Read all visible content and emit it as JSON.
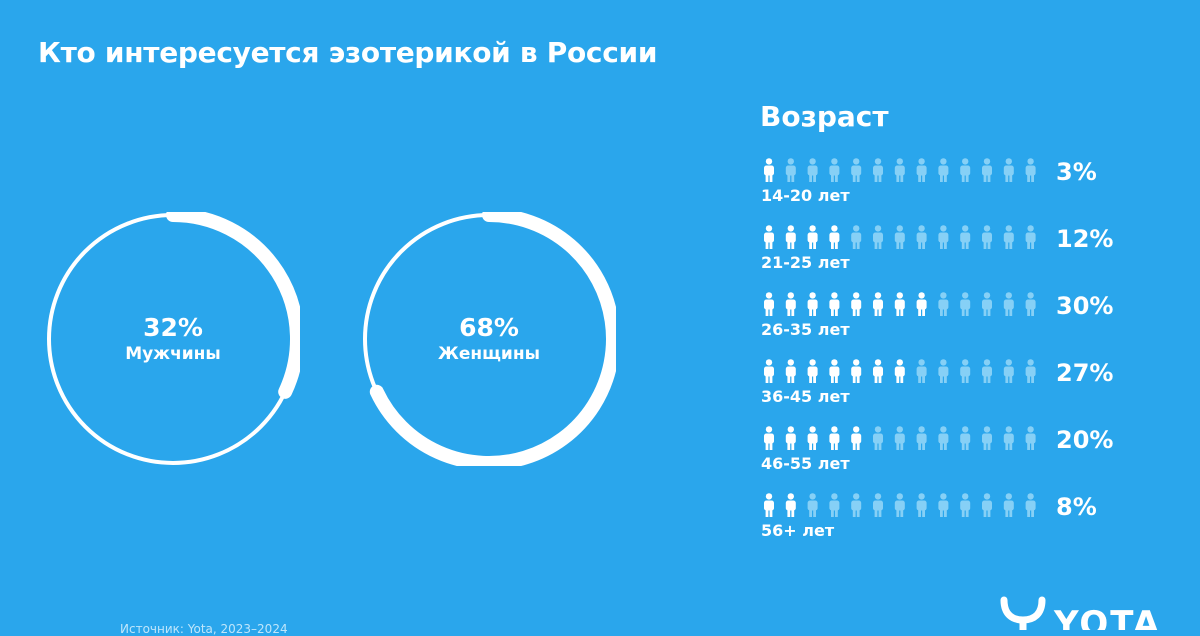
{
  "title": "Кто интересуется эзотерикой в России",
  "colors": {
    "background": "#2aa6ec",
    "ring_track": "#ffffff",
    "ring_arc": "#ffffff",
    "figure_filled": "#ffffff",
    "figure_empty": "#86d0f6"
  },
  "gender": {
    "men": {
      "value_text": "32%",
      "label": "Мужчины",
      "value": 32
    },
    "women": {
      "value_text": "68%",
      "label": "Женщины",
      "value": 68
    }
  },
  "age": {
    "title": "Возраст",
    "figures_per_row": 13,
    "icon": "person-icon"
  },
  "chart_data": [
    {
      "type": "pie",
      "categories": [
        "Мужчины",
        "Женщины"
      ],
      "values": [
        32,
        68
      ],
      "title": ""
    },
    {
      "type": "bar",
      "title": "Возраст",
      "categories": [
        "14-20 лет",
        "21-25 лет",
        "26-35 лет",
        "36-45 лет",
        "46-55 лет",
        "56+ лет"
      ],
      "values": [
        3,
        12,
        30,
        27,
        20,
        8
      ],
      "value_labels": [
        "3%",
        "12%",
        "30%",
        "27%",
        "20%",
        "8%"
      ],
      "filled_figures": [
        1,
        4,
        8,
        7,
        5,
        2
      ]
    }
  ],
  "footer": {
    "note": "Источник: Yota, 2023–2024",
    "brand": "YOTA"
  }
}
